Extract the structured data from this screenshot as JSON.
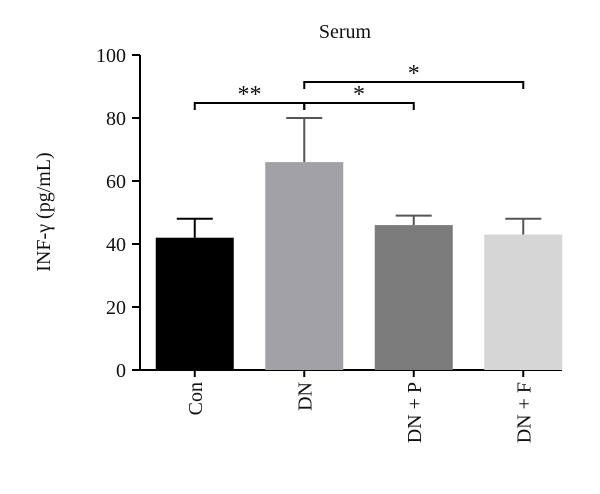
{
  "chart_data": {
    "type": "bar",
    "title": "Serum",
    "y_label": "INF-γ (pg/mL)",
    "categories": [
      "Con",
      "DN",
      "DN + P",
      "DN + F"
    ],
    "values": [
      42,
      66,
      46,
      43
    ],
    "errors": [
      6,
      14,
      3,
      5
    ],
    "colors": [
      "#000000",
      "#a2a2a6",
      "#7b7b7b",
      "#d6d6d6"
    ],
    "ylim": [
      0,
      100
    ],
    "yticks": [
      0,
      20,
      40,
      60,
      80,
      100
    ],
    "annotations": [
      {
        "text": "**"
      },
      {
        "text": "*"
      },
      {
        "text": "*"
      }
    ]
  }
}
